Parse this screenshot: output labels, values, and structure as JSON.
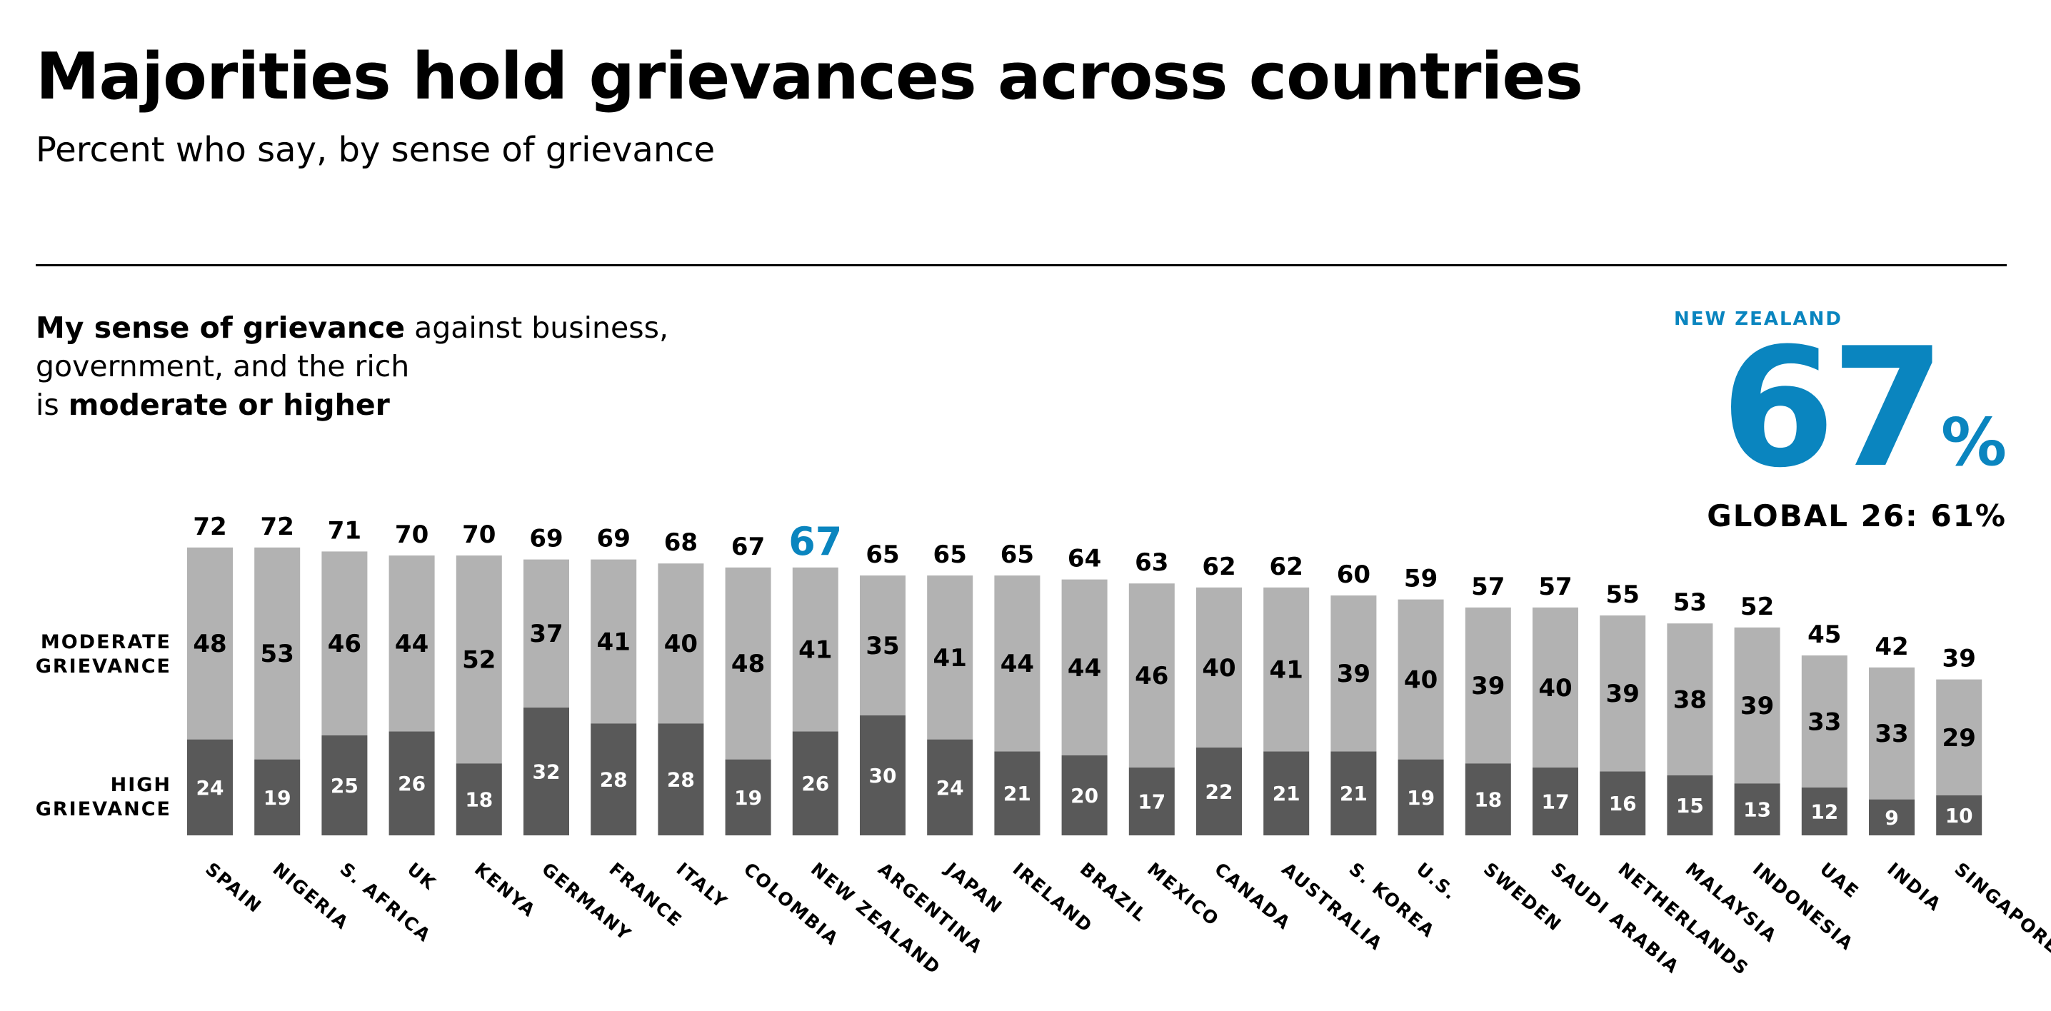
{
  "header": {
    "title": "Majorities hold grievances across countries",
    "subtitle": "Percent who say, by sense of grievance"
  },
  "statement": {
    "part1_bold": "My sense of grievance",
    "part2": " against business,",
    "part3": "government, and the rich",
    "part4": "is ",
    "part5_bold": "moderate or higher"
  },
  "callout": {
    "country": "NEW ZEALAND",
    "value": "67",
    "unit": "%",
    "global_label": "GLOBAL 26: 61%"
  },
  "colors": {
    "moderate": "#b2b2b2",
    "high": "#595959",
    "highlight": "#0a85bf",
    "text": "#000000"
  },
  "chart_data": {
    "type": "bar",
    "stacked": true,
    "highlight_category": "NEW ZEALAND",
    "row_labels": {
      "moderate": [
        "MODERATE",
        "GRIEVANCE"
      ],
      "high": [
        "HIGH",
        "GRIEVANCE"
      ]
    },
    "categories": [
      "SPAIN",
      "NIGERIA",
      "S. AFRICA",
      "UK",
      "KENYA",
      "GERMANY",
      "FRANCE",
      "ITALY",
      "COLOMBIA",
      "NEW ZEALAND",
      "ARGENTINA",
      "JAPAN",
      "IRELAND",
      "BRAZIL",
      "MEXICO",
      "CANADA",
      "AUSTRALIA",
      "S. KOREA",
      "U.S.",
      "SWEDEN",
      "SAUDI ARABIA",
      "NETHERLANDS",
      "MALAYSIA",
      "INDONESIA",
      "UAE",
      "INDIA",
      "SINGAPORE"
    ],
    "series": [
      {
        "name": "HIGH GRIEVANCE",
        "values": [
          24,
          19,
          25,
          26,
          18,
          32,
          28,
          28,
          19,
          26,
          30,
          24,
          21,
          20,
          17,
          22,
          21,
          21,
          19,
          18,
          17,
          16,
          15,
          13,
          12,
          9,
          10
        ]
      },
      {
        "name": "MODERATE GRIEVANCE",
        "values": [
          48,
          53,
          46,
          44,
          52,
          37,
          41,
          40,
          48,
          41,
          35,
          41,
          44,
          44,
          46,
          40,
          41,
          39,
          40,
          39,
          40,
          39,
          38,
          39,
          33,
          33,
          29
        ]
      }
    ],
    "totals": [
      72,
      72,
      71,
      70,
      70,
      69,
      69,
      68,
      67,
      67,
      65,
      65,
      65,
      64,
      63,
      62,
      62,
      60,
      59,
      57,
      57,
      55,
      53,
      52,
      45,
      42,
      39
    ],
    "ylim": [
      0,
      72
    ]
  }
}
